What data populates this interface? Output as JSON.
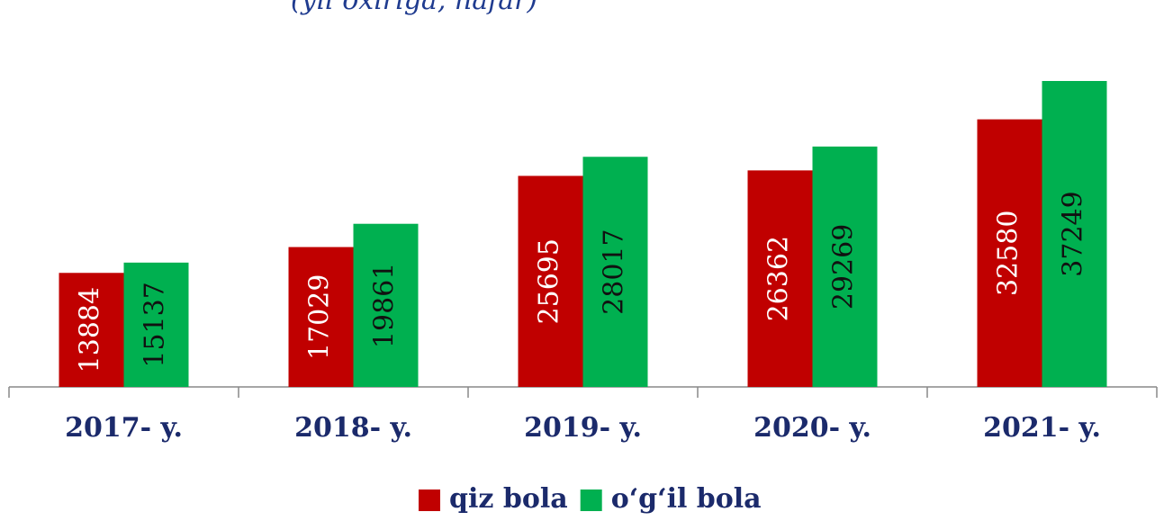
{
  "chart_data": {
    "type": "bar",
    "subtitle": "(yil oxiriga, nafar)",
    "categories": [
      "2017- y.",
      "2018- y.",
      "2019- y.",
      "2020- y.",
      "2021- y."
    ],
    "series": [
      {
        "name": "qiz bola",
        "color": "#c00000",
        "values": [
          13884,
          17029,
          25695,
          26362,
          32580
        ]
      },
      {
        "name": "o‘g‘il bola",
        "color": "#00b050",
        "values": [
          15137,
          19861,
          28017,
          29269,
          37249
        ]
      }
    ],
    "legend": "bottom"
  }
}
